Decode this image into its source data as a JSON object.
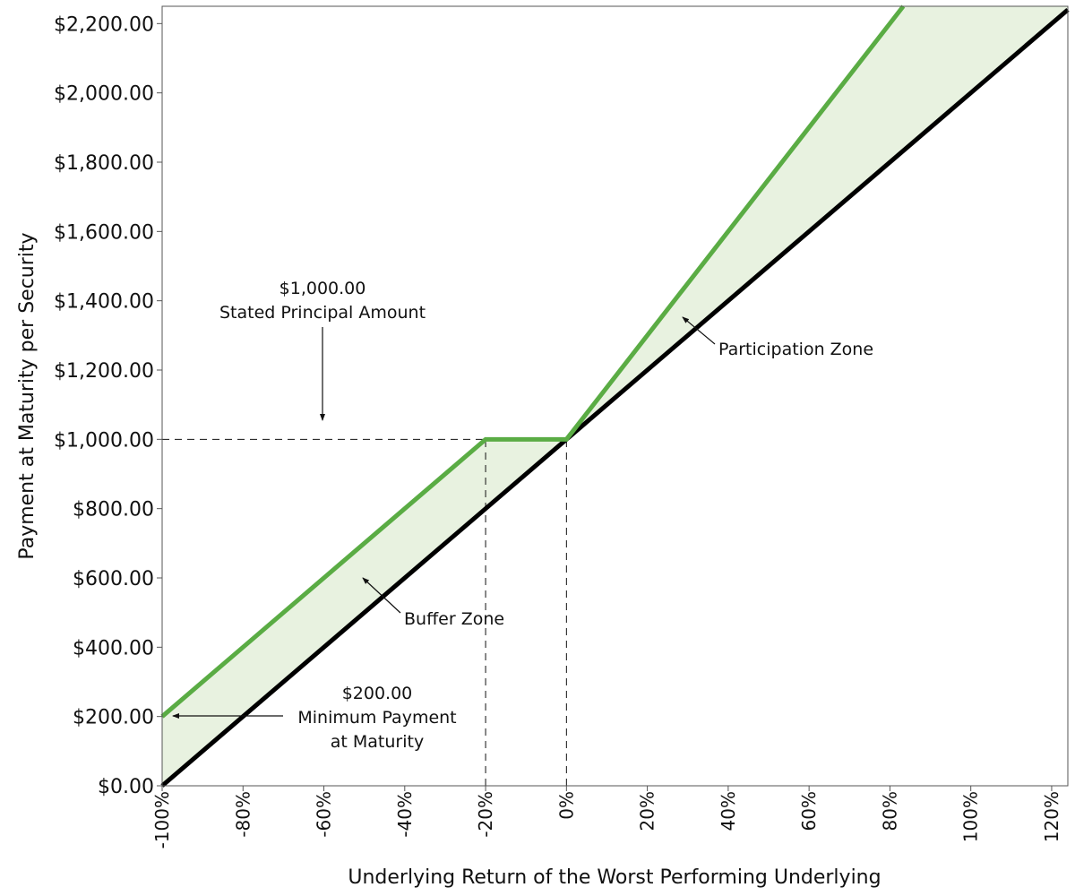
{
  "chart_data": {
    "type": "line",
    "title": "",
    "xlabel": "Underlying Return of the Worst Performing Underlying",
    "ylabel": "Payment at Maturity per Security",
    "xlim": [
      -100,
      124
    ],
    "ylim": [
      0,
      2250
    ],
    "x_ticks": [
      -100,
      -80,
      -60,
      -40,
      -20,
      0,
      20,
      40,
      60,
      80,
      100,
      120
    ],
    "x_tick_labels": [
      "-100%",
      "-80%",
      "-60%",
      "-40%",
      "-20%",
      "0%",
      "20%",
      "40%",
      "60%",
      "80%",
      "100%",
      "120%"
    ],
    "y_ticks": [
      0,
      200,
      400,
      600,
      800,
      1000,
      1200,
      1400,
      1600,
      1800,
      2000,
      2200
    ],
    "y_tick_labels": [
      "$0.00",
      "$200.00",
      "$400.00",
      "$600.00",
      "$800.00",
      "$1,000.00",
      "$1,200.00",
      "$1,400.00",
      "$1,600.00",
      "$1,800.00",
      "$2,000.00",
      "$2,200.00"
    ],
    "grid": false,
    "legend": "none",
    "series": [
      {
        "color": "#5aac44",
        "x": [
          -100,
          -20,
          0,
          83.3
        ],
        "y": [
          200,
          1000,
          1000,
          2250
        ]
      },
      {
        "color": "#000000",
        "x": [
          -100,
          124
        ],
        "y": [
          0,
          2240
        ]
      }
    ],
    "fill_color": "#e8f2e0",
    "reference_lines": [
      {
        "kind": "horizontal",
        "y": 1000,
        "x_from": -100,
        "x_to": 0
      },
      {
        "kind": "vertical",
        "x": -20,
        "y_from": 0,
        "y_to": 1000
      },
      {
        "kind": "vertical",
        "x": 0,
        "y_from": 0,
        "y_to": 1000
      }
    ],
    "annotations": [
      {
        "id": "stated-principal",
        "lines": [
          "$1,000.00",
          "Stated Principal Amount"
        ]
      },
      {
        "id": "participation-zone",
        "lines": [
          "Participation Zone"
        ]
      },
      {
        "id": "buffer-zone",
        "lines": [
          "Buffer Zone"
        ]
      },
      {
        "id": "minimum-payment",
        "lines": [
          "$200.00",
          "Minimum Payment",
          "at Maturity"
        ]
      }
    ]
  }
}
